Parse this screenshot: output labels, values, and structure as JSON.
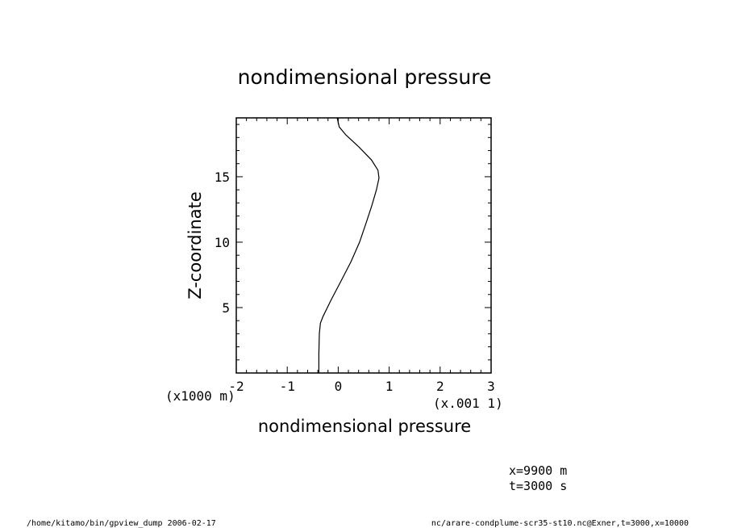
{
  "chart_data": {
    "type": "line",
    "title": "nondimensional pressure",
    "xlabel": "nondimensional pressure",
    "ylabel": "Z-coordinate",
    "x_scale_label": "(x.001 1)",
    "y_scale_label": "(x1000 m)",
    "xlim": [
      -2,
      3
    ],
    "ylim": [
      0,
      19.5
    ],
    "x_ticks": [
      -2,
      -1,
      0,
      1,
      2,
      3
    ],
    "x_tick_labels": [
      "-2",
      "-1",
      "0",
      "1",
      "2",
      "3"
    ],
    "y_ticks": [
      5,
      10,
      15
    ],
    "y_tick_labels": [
      "5",
      "10",
      "15"
    ],
    "grid": false,
    "series": [
      {
        "x": [
          -0.38,
          -0.38,
          -0.37,
          -0.35,
          -0.3,
          -0.15,
          0.05,
          0.25,
          0.42,
          0.55,
          0.66,
          0.75,
          0.8,
          0.78,
          0.65,
          0.4,
          0.15,
          0.02,
          -0.02
        ],
        "y": [
          0.0,
          1.5,
          3.0,
          3.8,
          4.3,
          5.5,
          7.0,
          8.5,
          10.0,
          11.5,
          12.8,
          14.0,
          14.9,
          15.5,
          16.3,
          17.3,
          18.2,
          18.8,
          19.5
        ]
      }
    ]
  },
  "info": {
    "x_position": "x=9900  m",
    "time": "t=3000  s"
  },
  "footer": {
    "left": "/home/kitamo/bin/gpview_dump  2006-02-17",
    "right": "nc/arare-condplume-scr35-st10.nc@Exner,t=3000,x=10000"
  }
}
